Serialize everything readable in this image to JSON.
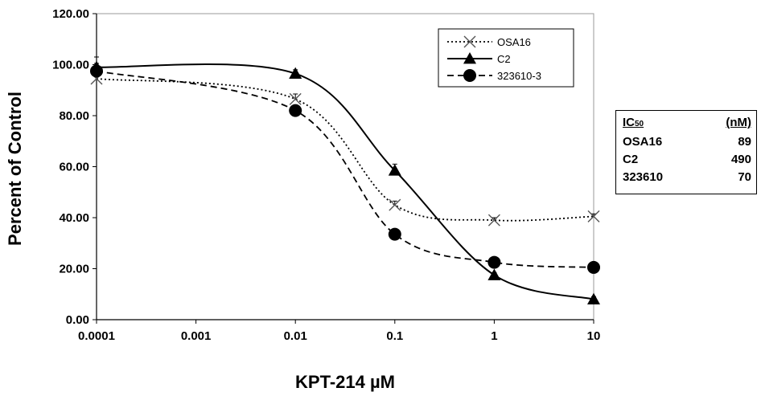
{
  "chart_data": {
    "type": "line",
    "xlabel": "KPT-214 µM",
    "ylabel": "Percent of Control",
    "x_scale": "log",
    "xlim": [
      0.0001,
      10
    ],
    "ylim": [
      0,
      120
    ],
    "x_ticks": [
      "0.0001",
      "0.001",
      "0.01",
      "0.1",
      "1",
      "10"
    ],
    "y_ticks": [
      "0.00",
      "20.00",
      "40.00",
      "60.00",
      "80.00",
      "100.00",
      "120.00"
    ],
    "grid": false,
    "legend_position": "top-right",
    "x": [
      0.0001,
      0.01,
      0.1,
      1,
      10
    ],
    "series": [
      {
        "name": "OSA16",
        "marker": "x",
        "line": "dotted",
        "values": [
          94.5,
          86.5,
          45.0,
          39.0,
          40.5
        ]
      },
      {
        "name": "C2",
        "marker": "triangle",
        "line": "solid",
        "values": [
          99.0,
          96.5,
          58.5,
          17.5,
          8.0
        ]
      },
      {
        "name": "323610-3",
        "marker": "circle",
        "line": "dashed",
        "values": [
          97.5,
          82.0,
          33.5,
          22.5,
          20.5
        ]
      }
    ],
    "error_bars": {
      "OSA16": [
        5.0,
        2.0,
        1.5,
        1.0,
        1.0
      ],
      "C2": [
        4.0,
        1.5,
        2.5,
        1.0,
        1.0
      ],
      "323610-3": [
        3.0,
        1.5,
        1.0,
        1.0,
        1.0
      ]
    }
  },
  "ic50_table": {
    "header_label": "IC",
    "header_sub": "50",
    "header_unit": "(nM)",
    "rows": [
      {
        "name": "OSA16",
        "value": "89"
      },
      {
        "name": "C2",
        "value": "490"
      },
      {
        "name": "323610",
        "value": "70"
      }
    ]
  }
}
